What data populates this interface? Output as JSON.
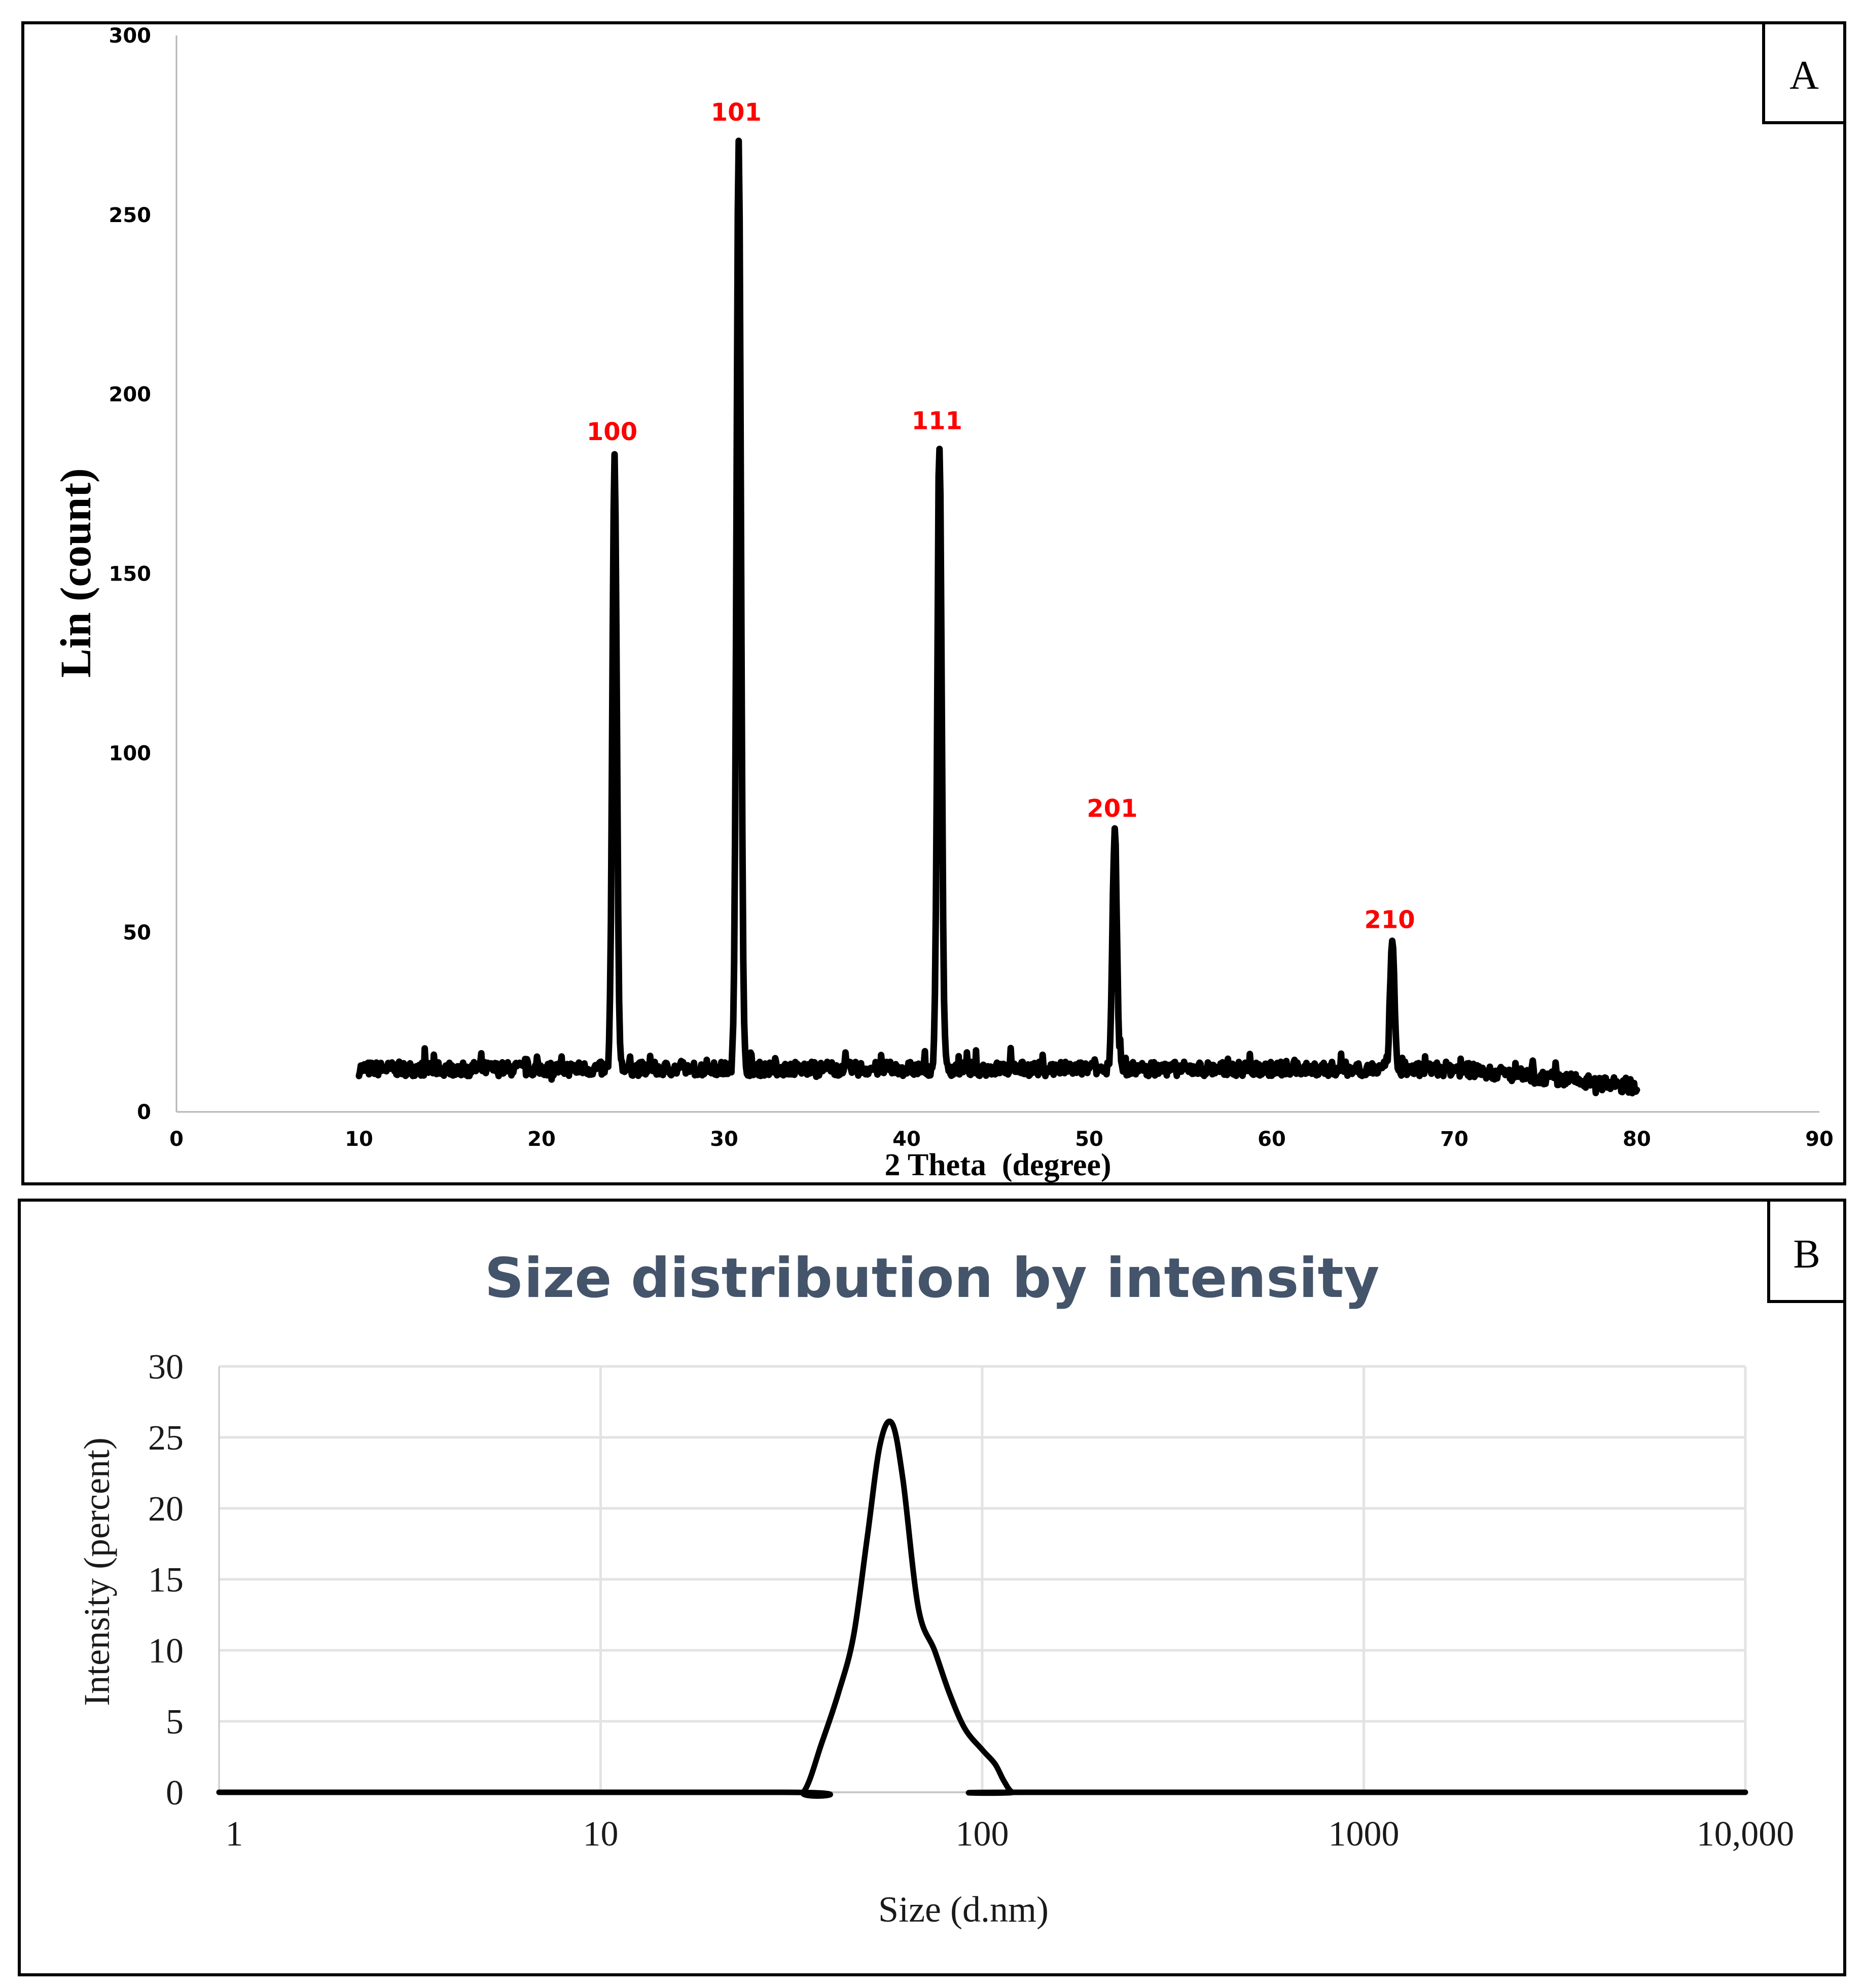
{
  "panel_a_letter": "A",
  "panel_b_letter": "B",
  "chart_data": [
    {
      "type": "line",
      "panel": "A",
      "title": "",
      "xlabel": "2 Theta  (degree)",
      "ylabel": "Lin (count)",
      "xlim": [
        0,
        90
      ],
      "ylim": [
        0,
        300
      ],
      "xticks": [
        0,
        10,
        20,
        30,
        40,
        50,
        60,
        70,
        80,
        90
      ],
      "yticks": [
        0,
        50,
        100,
        150,
        200,
        250,
        300
      ],
      "grid": false,
      "baseline": 12,
      "x_range": [
        10,
        80
      ],
      "peaks": [
        {
          "label": "100",
          "x": 24.0,
          "y": 183
        },
        {
          "label": "101",
          "x": 30.8,
          "y": 272
        },
        {
          "label": "111",
          "x": 41.8,
          "y": 186
        },
        {
          "label": "201",
          "x": 51.4,
          "y": 78
        },
        {
          "label": "210",
          "x": 66.6,
          "y": 47
        }
      ]
    },
    {
      "type": "line",
      "panel": "B",
      "title": "Size distribution by intensity",
      "xlabel": "Size (d.nm)",
      "ylabel": "Intensity (percent)",
      "xscale": "log",
      "xlim": [
        1,
        10000
      ],
      "ylim": [
        0,
        30
      ],
      "xticks": [
        1,
        10,
        100,
        1000,
        10000
      ],
      "xtick_labels": [
        "1",
        "10",
        "100",
        "1000",
        "10,000"
      ],
      "yticks": [
        0,
        5,
        10,
        15,
        20,
        25,
        30
      ],
      "grid": true,
      "x": [
        1,
        30,
        34,
        38,
        42,
        46,
        50,
        54,
        58,
        62,
        68,
        75,
        82,
        90,
        100,
        108,
        114,
        120,
        130,
        10000
      ],
      "y": [
        0,
        0,
        0,
        3.5,
        7,
        11,
        18,
        24.5,
        26,
        22,
        13,
        10,
        7,
        4.5,
        3,
        2,
        0.8,
        0,
        0,
        0
      ]
    }
  ]
}
